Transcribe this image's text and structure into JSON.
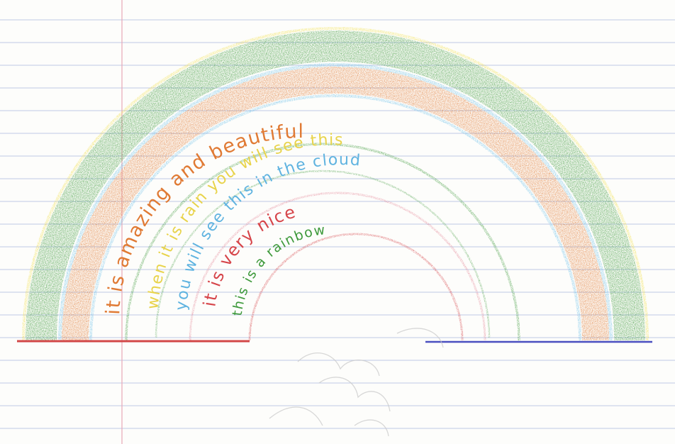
{
  "drawing": {
    "subject": "rainbow",
    "colors": {
      "paper": "#fdfdfb",
      "ruled_line": "#aab8e0",
      "margin_line": "#e8a8b8",
      "yellow": "#f2e04a",
      "green": "#3f9a3c",
      "blue": "#6cc0e8",
      "orange": "#e07a34",
      "pink": "#e58a9a",
      "red": "#d6454a",
      "ground_red": "#d24848",
      "ground_blue": "#4a4fc0",
      "pencil": "#c8c8c8"
    },
    "bands": [
      {
        "name": "yellow-outline",
        "color": "#f2e04a"
      },
      {
        "name": "green-band",
        "color": "#3f9a3c"
      },
      {
        "name": "blue-stripe",
        "color": "#6cc0e8"
      },
      {
        "name": "orange-band",
        "color": "#e07a34"
      },
      {
        "name": "blue-stripe-inner",
        "color": "#6cc0e8"
      }
    ],
    "inner_arcs": [
      {
        "name": "green-arc",
        "color": "#3f9a3c"
      },
      {
        "name": "green-arc-2",
        "color": "#58b04c"
      },
      {
        "name": "pink-arc",
        "color": "#e58a9a"
      },
      {
        "name": "red-arc",
        "color": "#d6454a"
      }
    ],
    "phrases": [
      {
        "text": "it is amazing and beautiful",
        "color": "#e07a34"
      },
      {
        "text": "when it is rain you will see this",
        "color": "#e8d34a"
      },
      {
        "text": "you will see this in the cloud",
        "color": "#5fb3e0"
      },
      {
        "text": "it is very nice",
        "color": "#d6454a"
      },
      {
        "text": "this is a rainbow",
        "color": "#3f9a3c"
      }
    ]
  }
}
